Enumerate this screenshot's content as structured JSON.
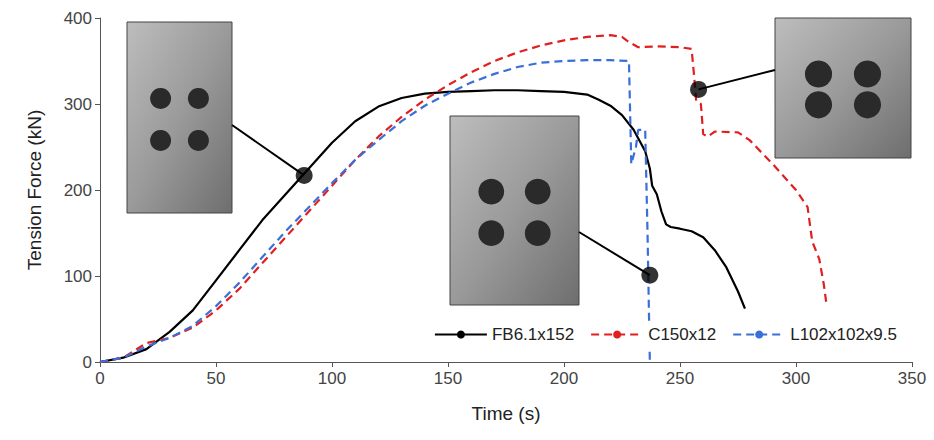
{
  "chart_data": {
    "type": "line",
    "xlabel": "Time (s)",
    "ylabel": "Tension Force (kN)",
    "xlim": [
      0,
      350
    ],
    "xticks": [
      0,
      50,
      100,
      150,
      200,
      250,
      300,
      350
    ],
    "ylim": [
      0,
      400
    ],
    "yticks": [
      0,
      100,
      200,
      300,
      400
    ],
    "grid": false,
    "legend": "lower right",
    "series": [
      {
        "name": "FB6.1x152",
        "color": "#000000",
        "line_style": "solid",
        "x": [
          0,
          10,
          20,
          30,
          40,
          50,
          60,
          70,
          80,
          90,
          100,
          110,
          120,
          130,
          140,
          150,
          160,
          170,
          180,
          190,
          200,
          210,
          215,
          220,
          225,
          230,
          235,
          237,
          238,
          240,
          242,
          244,
          246,
          250,
          255,
          260,
          265,
          270,
          275,
          278
        ],
        "values": [
          0,
          5,
          15,
          35,
          60,
          95,
          130,
          165,
          195,
          225,
          255,
          280,
          297,
          307,
          312,
          314,
          315,
          316,
          316,
          315,
          314,
          311,
          305,
          298,
          287,
          270,
          245,
          225,
          205,
          195,
          175,
          160,
          157,
          155,
          152,
          145,
          130,
          110,
          82,
          62
        ]
      },
      {
        "name": "C150x12",
        "color": "#e02020",
        "line_style": "dashed",
        "x": [
          0,
          10,
          20,
          30,
          40,
          50,
          60,
          70,
          80,
          90,
          100,
          110,
          120,
          130,
          140,
          150,
          160,
          170,
          180,
          190,
          200,
          210,
          220,
          225,
          228,
          232,
          240,
          250,
          255,
          256,
          257,
          259,
          260,
          262,
          265,
          275,
          280,
          290,
          300,
          305,
          307,
          310,
          312,
          313
        ],
        "values": [
          0,
          5,
          22,
          28,
          40,
          60,
          85,
          115,
          145,
          175,
          205,
          235,
          262,
          285,
          305,
          322,
          337,
          350,
          360,
          368,
          374,
          378,
          380,
          378,
          372,
          366,
          367,
          366,
          364,
          335,
          303,
          300,
          265,
          262,
          268,
          267,
          258,
          230,
          200,
          180,
          140,
          120,
          90,
          70
        ]
      },
      {
        "name": "L102x102x9.5",
        "color": "#3a6fd8",
        "line_style": "dashed",
        "x": [
          0,
          10,
          20,
          30,
          40,
          50,
          60,
          70,
          80,
          90,
          100,
          110,
          120,
          130,
          140,
          150,
          160,
          170,
          180,
          190,
          200,
          210,
          220,
          228,
          229,
          231,
          232,
          235,
          236,
          237
        ],
        "values": [
          0,
          5,
          18,
          28,
          42,
          65,
          92,
          122,
          152,
          180,
          208,
          235,
          258,
          280,
          298,
          312,
          325,
          335,
          343,
          348,
          350,
          351,
          351,
          350,
          230,
          250,
          270,
          270,
          150,
          0
        ]
      }
    ],
    "photo_points": [
      {
        "series": "FB6.1x152",
        "x": 88,
        "y": 217
      },
      {
        "series": "L102x102x9.5",
        "x": 237,
        "y": 101
      },
      {
        "series": "C150x12",
        "x": 258,
        "y": 317
      }
    ]
  }
}
